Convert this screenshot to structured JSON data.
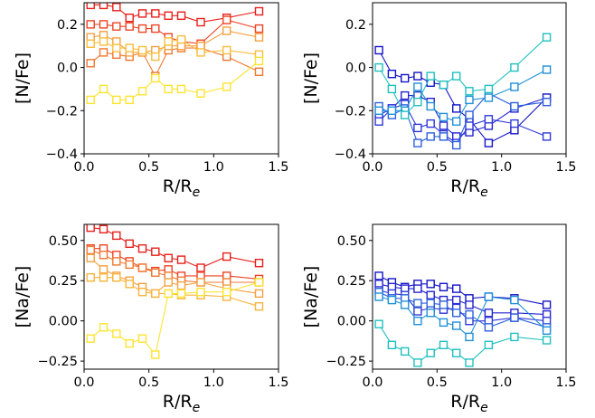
{
  "chart_data": [
    {
      "type": "line",
      "panel": "top-left",
      "xlabel": "R/R",
      "xlabel_sub": "e",
      "ylabel": "[N/Fe]",
      "xlim": [
        0,
        1.5
      ],
      "ylim": [
        -0.4,
        0.3
      ],
      "xticks": [
        "0.0",
        "0.5",
        "1.0",
        "1.5"
      ],
      "yticks": [
        "−0.4",
        "−0.2",
        "0.0",
        "0.2"
      ],
      "xtick_values": [
        0,
        0.5,
        1.0,
        1.5
      ],
      "ytick_values": [
        -0.4,
        -0.2,
        0.0,
        0.2
      ],
      "marker": "open-square",
      "series": [
        {
          "color": "#e8201c",
          "x": [
            0.05,
            0.15,
            0.25,
            0.35,
            0.45,
            0.55,
            0.65,
            0.75,
            0.9,
            1.1,
            1.35
          ],
          "y": [
            0.29,
            0.29,
            0.28,
            0.23,
            0.25,
            0.25,
            0.24,
            0.24,
            0.21,
            0.23,
            0.26
          ]
        },
        {
          "color": "#ee4424",
          "x": [
            0.05,
            0.15,
            0.25,
            0.35,
            0.45,
            0.55,
            0.65,
            0.75,
            0.9,
            1.1,
            1.35
          ],
          "y": [
            0.2,
            0.2,
            0.19,
            0.19,
            0.18,
            0.18,
            0.14,
            0.12,
            0.11,
            0.22,
            0.18
          ]
        },
        {
          "color": "#f07830",
          "x": [
            0.05,
            0.15,
            0.25,
            0.35,
            0.45,
            0.55,
            0.65,
            0.75,
            0.9,
            1.1,
            1.35
          ],
          "y": [
            0.02,
            0.07,
            0.06,
            0.05,
            0.07,
            -0.04,
            0.08,
            0.09,
            0.09,
            0.05,
            -0.02
          ]
        },
        {
          "color": "#f5a040",
          "x": [
            0.05,
            0.15,
            0.25,
            0.35,
            0.45,
            0.55,
            0.65,
            0.75,
            0.9,
            1.1,
            1.35
          ],
          "y": [
            0.14,
            0.15,
            0.12,
            0.07,
            0.07,
            0.08,
            0.1,
            0.1,
            0.1,
            0.17,
            0.14
          ]
        },
        {
          "color": "#fabd3c",
          "x": [
            0.05,
            0.15,
            0.25,
            0.35,
            0.45,
            0.55,
            0.65,
            0.75,
            0.9,
            1.1,
            1.35
          ],
          "y": [
            0.11,
            0.12,
            0.09,
            0.09,
            0.08,
            0.05,
            0.12,
            0.13,
            0.07,
            0.08,
            0.06
          ]
        },
        {
          "color": "#fde430",
          "x": [
            0.05,
            0.15,
            0.25,
            0.35,
            0.45,
            0.55,
            0.65,
            0.75,
            0.9,
            1.1,
            1.35
          ],
          "y": [
            -0.15,
            -0.1,
            -0.15,
            -0.15,
            -0.11,
            -0.05,
            -0.1,
            -0.1,
            -0.12,
            -0.09,
            0.03
          ]
        }
      ]
    },
    {
      "type": "line",
      "panel": "top-right",
      "xlabel": "R/R",
      "xlabel_sub": "e",
      "ylabel": "[N/Fe]",
      "xlim": [
        0,
        1.5
      ],
      "ylim": [
        -0.4,
        0.3
      ],
      "xticks": [
        "0.0",
        "0.5",
        "1.0",
        "1.5"
      ],
      "yticks": [
        "−0.4",
        "−0.2",
        "0.0",
        "0.2"
      ],
      "xtick_values": [
        0,
        0.5,
        1.0,
        1.5
      ],
      "ytick_values": [
        -0.4,
        -0.2,
        0.0,
        0.2
      ],
      "marker": "open-square",
      "series": [
        {
          "color": "#1414c8",
          "x": [
            0.05,
            0.15,
            0.25,
            0.35,
            0.45,
            0.55,
            0.65,
            0.75,
            0.9,
            1.1,
            1.35
          ],
          "y": [
            0.08,
            -0.03,
            -0.05,
            -0.04,
            -0.07,
            -0.08,
            -0.19,
            -0.24,
            -0.35,
            -0.29,
            -0.14
          ]
        },
        {
          "color": "#2424d0",
          "x": [
            0.05,
            0.15,
            0.25,
            0.35,
            0.45,
            0.55,
            0.65,
            0.75,
            0.9,
            1.1,
            1.35
          ],
          "y": [
            -0.22,
            -0.19,
            -0.13,
            -0.13,
            -0.16,
            -0.27,
            -0.32,
            -0.3,
            -0.27,
            -0.19,
            -0.14
          ]
        },
        {
          "color": "#3038d8",
          "x": [
            0.05,
            0.15,
            0.25,
            0.35,
            0.45,
            0.55,
            0.65,
            0.75,
            0.9,
            1.1,
            1.35
          ],
          "y": [
            -0.25,
            -0.19,
            -0.17,
            -0.28,
            -0.26,
            -0.31,
            -0.35,
            -0.27,
            -0.24,
            -0.26,
            -0.32
          ]
        },
        {
          "color": "#2c60dc",
          "x": [
            0.05,
            0.15,
            0.25,
            0.35,
            0.45,
            0.55,
            0.65,
            0.75,
            0.9,
            1.1,
            1.35
          ],
          "y": [
            -0.18,
            -0.22,
            -0.19,
            -0.35,
            -0.32,
            -0.32,
            -0.36,
            -0.22,
            -0.12,
            -0.18,
            -0.16
          ]
        },
        {
          "color": "#2090d8",
          "x": [
            0.05,
            0.15,
            0.25,
            0.35,
            0.45,
            0.55,
            0.65,
            0.75,
            0.9,
            1.1,
            1.35
          ],
          "y": [
            -0.2,
            -0.2,
            -0.2,
            -0.09,
            -0.18,
            -0.23,
            -0.25,
            -0.15,
            -0.14,
            -0.09,
            -0.01
          ]
        },
        {
          "color": "#20c0c0",
          "x": [
            0.05,
            0.15,
            0.25,
            0.35,
            0.45,
            0.55,
            0.65,
            0.75,
            0.9,
            1.1,
            1.35
          ],
          "y": [
            0.0,
            -0.1,
            -0.22,
            -0.16,
            -0.04,
            -0.08,
            -0.04,
            -0.11,
            -0.1,
            0.0,
            0.14
          ]
        }
      ]
    },
    {
      "type": "line",
      "panel": "bottom-left",
      "xlabel": "R/R",
      "xlabel_sub": "e",
      "ylabel": "[Na/Fe]",
      "xlim": [
        0,
        1.5
      ],
      "ylim": [
        -0.3,
        0.6
      ],
      "xticks": [
        "0.0",
        "0.5",
        "1.0",
        "1.5"
      ],
      "yticks": [
        "−0.25",
        "0.00",
        "0.25",
        "0.50"
      ],
      "xtick_values": [
        0,
        0.5,
        1.0,
        1.5
      ],
      "ytick_values": [
        -0.25,
        0.0,
        0.25,
        0.5
      ],
      "marker": "open-square",
      "series": [
        {
          "color": "#e8201c",
          "x": [
            0.05,
            0.15,
            0.25,
            0.35,
            0.45,
            0.55,
            0.65,
            0.75,
            0.9,
            1.1,
            1.35
          ],
          "y": [
            0.58,
            0.57,
            0.53,
            0.48,
            0.45,
            0.43,
            0.39,
            0.38,
            0.33,
            0.4,
            0.36
          ]
        },
        {
          "color": "#ee4424",
          "x": [
            0.05,
            0.15,
            0.25,
            0.35,
            0.45,
            0.55,
            0.65,
            0.75,
            0.9,
            1.1,
            1.35
          ],
          "y": [
            0.45,
            0.45,
            0.41,
            0.37,
            0.33,
            0.31,
            0.32,
            0.28,
            0.28,
            0.28,
            0.26
          ]
        },
        {
          "color": "#f07830",
          "x": [
            0.05,
            0.15,
            0.25,
            0.35,
            0.45,
            0.55,
            0.65,
            0.75,
            0.9,
            1.1,
            1.35
          ],
          "y": [
            0.44,
            0.41,
            0.37,
            0.35,
            0.33,
            0.3,
            0.28,
            0.25,
            0.24,
            0.24,
            0.24
          ]
        },
        {
          "color": "#f5a040",
          "x": [
            0.05,
            0.15,
            0.25,
            0.35,
            0.45,
            0.55,
            0.65,
            0.75,
            0.9,
            1.1,
            1.35
          ],
          "y": [
            0.39,
            0.32,
            0.28,
            0.25,
            0.21,
            0.17,
            0.24,
            0.22,
            0.24,
            0.2,
            0.17
          ]
        },
        {
          "color": "#fab43c",
          "x": [
            0.05,
            0.15,
            0.25,
            0.35,
            0.45,
            0.55,
            0.65,
            0.75,
            0.9,
            1.1,
            1.35
          ],
          "y": [
            0.27,
            0.27,
            0.27,
            0.23,
            0.18,
            0.17,
            0.17,
            0.16,
            0.16,
            0.15,
            0.09
          ]
        },
        {
          "color": "#fde430",
          "x": [
            0.05,
            0.15,
            0.25,
            0.35,
            0.45,
            0.55,
            0.65,
            0.75,
            0.9,
            1.1,
            1.35
          ],
          "y": [
            -0.11,
            -0.04,
            -0.08,
            -0.14,
            -0.11,
            -0.21,
            0.17,
            0.17,
            0.18,
            0.18,
            0.24
          ]
        }
      ]
    },
    {
      "type": "line",
      "panel": "bottom-right",
      "xlabel": "R/R",
      "xlabel_sub": "e",
      "ylabel": "[Na/Fe]",
      "xlim": [
        0,
        1.5
      ],
      "ylim": [
        -0.3,
        0.6
      ],
      "xticks": [
        "0.0",
        "0.5",
        "1.0",
        "1.5"
      ],
      "yticks": [
        "−0.25",
        "0.00",
        "0.25",
        "0.50"
      ],
      "xtick_values": [
        0,
        0.5,
        1.0,
        1.5
      ],
      "ytick_values": [
        -0.25,
        0.0,
        0.25,
        0.5
      ],
      "marker": "open-square",
      "series": [
        {
          "color": "#1414c8",
          "x": [
            0.05,
            0.15,
            0.25,
            0.35,
            0.45,
            0.55,
            0.65,
            0.75,
            0.9,
            1.1,
            1.35
          ],
          "y": [
            0.28,
            0.24,
            0.21,
            0.23,
            0.23,
            0.21,
            0.2,
            0.14,
            0.15,
            0.14,
            0.1
          ]
        },
        {
          "color": "#2424d0",
          "x": [
            0.05,
            0.15,
            0.25,
            0.35,
            0.45,
            0.55,
            0.65,
            0.75,
            0.9,
            1.1,
            1.35
          ],
          "y": [
            0.23,
            0.21,
            0.2,
            0.2,
            0.16,
            0.13,
            0.13,
            0.1,
            0.05,
            0.05,
            0.04
          ]
        },
        {
          "color": "#3038d8",
          "x": [
            0.05,
            0.15,
            0.25,
            0.35,
            0.45,
            0.55,
            0.65,
            0.75,
            0.9,
            1.1,
            1.35
          ],
          "y": [
            0.19,
            0.17,
            0.16,
            0.06,
            0.08,
            0.07,
            0.08,
            0.0,
            0.0,
            0.02,
            0.0
          ]
        },
        {
          "color": "#2c60dc",
          "x": [
            0.05,
            0.15,
            0.25,
            0.35,
            0.45,
            0.55,
            0.65,
            0.75,
            0.9,
            1.1,
            1.35
          ],
          "y": [
            0.18,
            0.14,
            0.14,
            0.11,
            0.11,
            0.1,
            0.05,
            0.04,
            -0.04,
            0.02,
            -0.04
          ]
        },
        {
          "color": "#2090d8",
          "x": [
            0.05,
            0.15,
            0.25,
            0.35,
            0.45,
            0.55,
            0.65,
            0.75,
            0.9,
            1.1,
            1.35
          ],
          "y": [
            0.15,
            0.13,
            0.1,
            0.0,
            0.05,
            -0.01,
            -0.03,
            -0.1,
            0.15,
            0.13,
            -0.06
          ]
        },
        {
          "color": "#20c0c0",
          "x": [
            0.05,
            0.15,
            0.25,
            0.35,
            0.45,
            0.55,
            0.65,
            0.75,
            0.9,
            1.1,
            1.35
          ],
          "y": [
            -0.02,
            -0.15,
            -0.19,
            -0.26,
            -0.2,
            -0.15,
            -0.2,
            -0.26,
            -0.15,
            -0.1,
            -0.12
          ]
        }
      ]
    }
  ]
}
